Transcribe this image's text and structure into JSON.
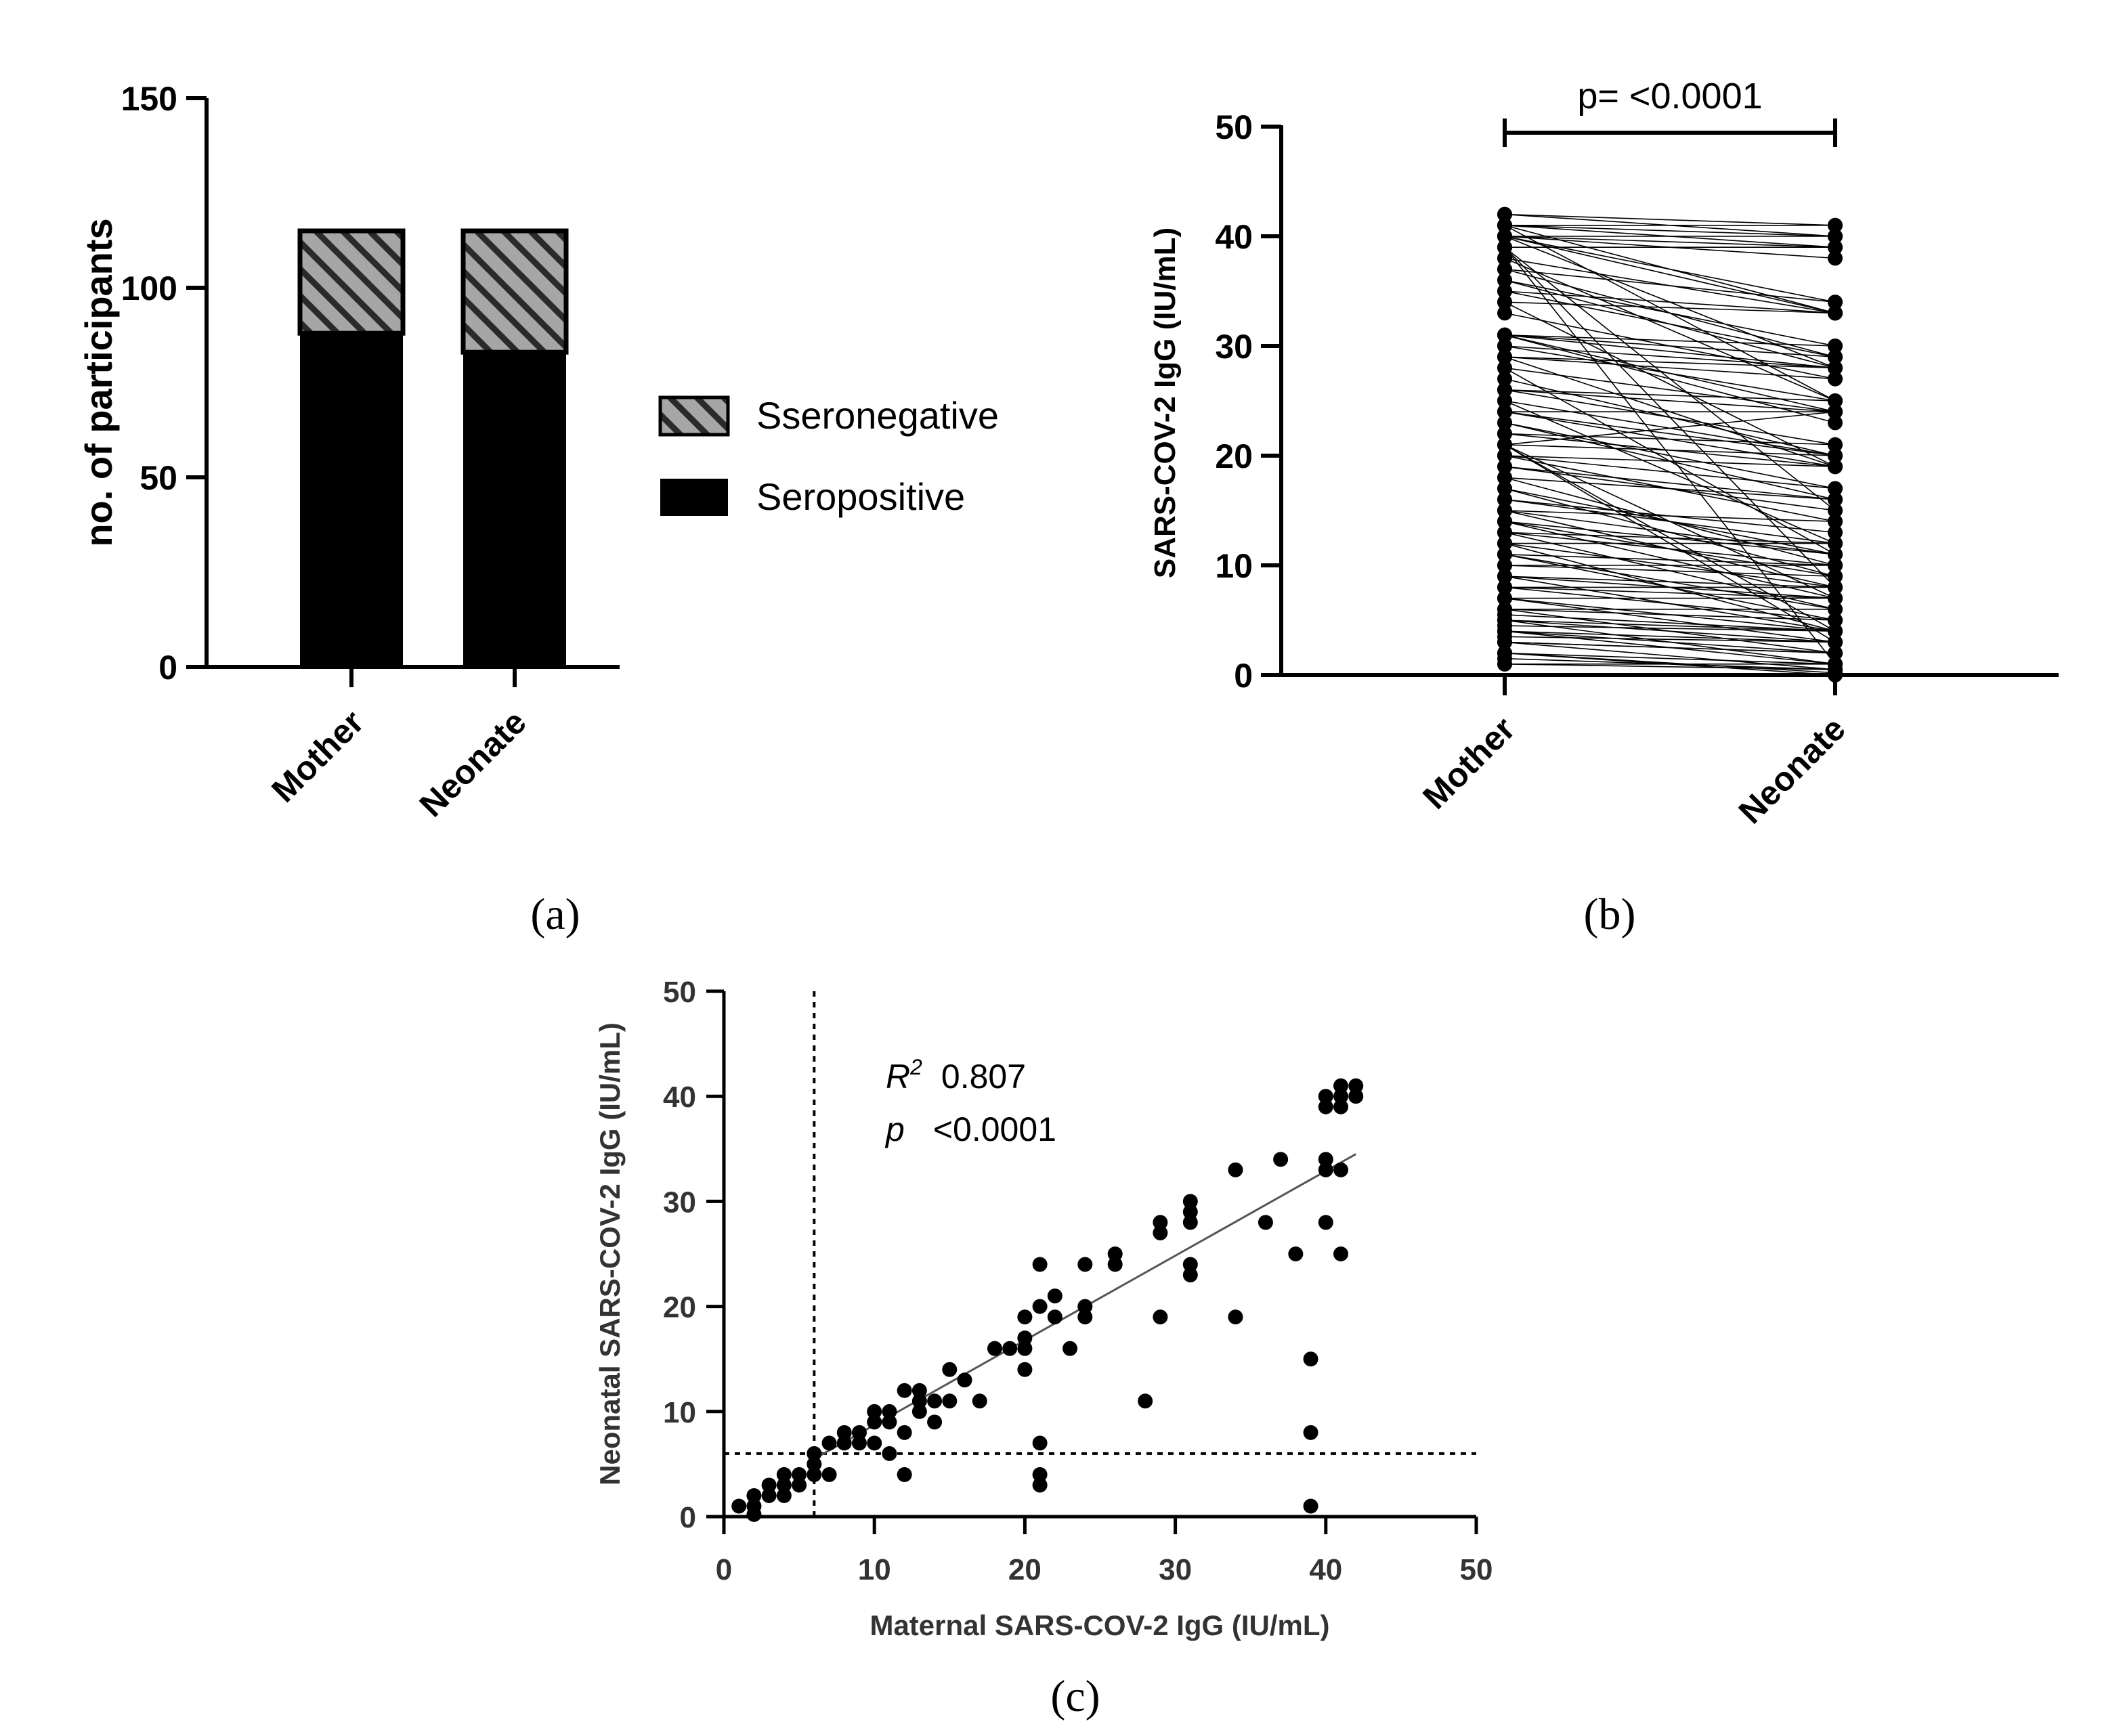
{
  "chart_data": [
    {
      "panel": "(a)",
      "type": "bar",
      "stacked": true,
      "categories": [
        "Mother",
        "Neonate"
      ],
      "series": [
        {
          "name": "Seropositive",
          "values": [
            88,
            83
          ],
          "fill": "#000000"
        },
        {
          "name": "Sseronegative",
          "values": [
            27,
            32
          ],
          "fill": "hatched grey"
        }
      ],
      "ylabel": "no. of participants",
      "ylim": [
        0,
        150
      ],
      "yticks": [
        0,
        50,
        100,
        150
      ],
      "legend_position": "right"
    },
    {
      "panel": "(b)",
      "type": "line",
      "style": "paired before-after",
      "categories": [
        "Mother",
        "Neonate"
      ],
      "ylabel": "SARS-COV-2 IgG (IU/mL)",
      "ylim": [
        0,
        50
      ],
      "yticks": [
        0,
        10,
        20,
        30,
        40,
        50
      ],
      "annotation": "p= <0.0001",
      "pairs": [
        [
          1,
          1
        ],
        [
          1,
          0.5
        ],
        [
          2,
          1
        ],
        [
          2,
          0
        ],
        [
          3,
          2
        ],
        [
          3,
          2
        ],
        [
          3.5,
          3
        ],
        [
          4,
          2
        ],
        [
          4,
          3
        ],
        [
          4.5,
          4
        ],
        [
          5,
          3
        ],
        [
          5,
          4
        ],
        [
          5.5,
          4
        ],
        [
          6,
          5
        ],
        [
          6,
          6
        ],
        [
          7,
          4
        ],
        [
          7,
          7
        ],
        [
          8,
          7
        ],
        [
          8,
          8
        ],
        [
          9,
          7
        ],
        [
          9,
          8
        ],
        [
          10,
          9
        ],
        [
          10,
          10
        ],
        [
          11,
          6
        ],
        [
          11,
          10
        ],
        [
          12,
          8
        ],
        [
          12,
          12
        ],
        [
          12,
          4
        ],
        [
          13,
          10
        ],
        [
          13,
          12
        ],
        [
          14,
          9
        ],
        [
          14,
          11
        ],
        [
          15,
          11
        ],
        [
          15,
          14
        ],
        [
          16,
          13
        ],
        [
          17,
          11
        ],
        [
          18,
          16
        ],
        [
          19,
          16
        ],
        [
          20,
          14
        ],
        [
          20,
          17
        ],
        [
          20,
          19
        ],
        [
          21,
          20
        ],
        [
          21,
          24
        ],
        [
          21,
          3
        ],
        [
          21,
          4
        ],
        [
          21,
          7
        ],
        [
          22,
          19
        ],
        [
          22,
          21
        ],
        [
          23,
          16
        ],
        [
          24,
          19
        ],
        [
          24,
          20
        ],
        [
          24,
          24
        ],
        [
          26,
          24
        ],
        [
          26,
          25
        ],
        [
          28,
          11
        ],
        [
          29,
          19
        ],
        [
          29,
          27
        ],
        [
          29,
          28
        ],
        [
          31,
          23
        ],
        [
          31,
          24
        ],
        [
          31,
          28
        ],
        [
          31,
          29
        ],
        [
          31,
          30
        ],
        [
          34,
          19
        ],
        [
          34,
          33
        ],
        [
          36,
          28
        ],
        [
          37,
          34
        ],
        [
          38,
          25
        ],
        [
          39,
          1
        ],
        [
          39,
          8
        ],
        [
          39,
          15
        ],
        [
          40,
          28
        ],
        [
          40,
          33
        ],
        [
          40,
          34
        ],
        [
          40,
          39
        ],
        [
          40,
          40
        ],
        [
          41,
          25
        ],
        [
          41,
          33
        ],
        [
          41,
          39
        ],
        [
          41,
          40
        ],
        [
          41,
          41
        ],
        [
          42,
          40
        ],
        [
          42,
          41
        ],
        [
          40,
          38
        ],
        [
          39,
          39
        ],
        [
          38,
          33
        ],
        [
          36,
          30
        ],
        [
          35,
          29
        ],
        [
          30,
          28
        ],
        [
          28,
          24
        ],
        [
          26,
          21
        ],
        [
          25,
          20
        ],
        [
          23,
          17
        ],
        [
          19,
          15
        ],
        [
          18,
          10
        ],
        [
          17,
          9
        ],
        [
          16,
          12
        ],
        [
          15,
          8
        ],
        [
          14,
          7
        ],
        [
          13,
          6
        ],
        [
          11,
          5
        ],
        [
          9,
          4
        ],
        [
          8,
          5
        ],
        [
          7,
          3
        ],
        [
          6,
          2
        ],
        [
          5,
          1
        ],
        [
          4,
          1
        ],
        [
          3,
          0.5
        ],
        [
          2,
          0.2
        ],
        [
          1.5,
          0.5
        ],
        [
          27,
          20
        ],
        [
          30,
          25
        ],
        [
          33,
          27
        ],
        [
          35,
          33
        ],
        [
          37,
          29
        ],
        [
          25,
          12
        ]
      ]
    },
    {
      "panel": "(c)",
      "type": "scatter",
      "xlabel": "Maternal SARS-COV-2 IgG (IU/mL)",
      "ylabel": "Neonatal SARS-COV-2 IgG (IU/mL)",
      "xlim": [
        0,
        50
      ],
      "ylim": [
        0,
        50
      ],
      "xticks": [
        0,
        10,
        20,
        30,
        40,
        50
      ],
      "yticks": [
        0,
        10,
        20,
        30,
        40,
        50
      ],
      "cutoff_x": 6,
      "cutoff_y": 6,
      "regression_line": {
        "x": [
          6,
          42
        ],
        "y": [
          5.5,
          34.5
        ]
      },
      "r2_label": "R",
      "r2_superscript": "2",
      "r2_value": "0.807",
      "p_label": "p",
      "p_value": "<0.0001",
      "points": [
        [
          1,
          1
        ],
        [
          2,
          0.2
        ],
        [
          2,
          1
        ],
        [
          2,
          2
        ],
        [
          3,
          2
        ],
        [
          3,
          3
        ],
        [
          4,
          2
        ],
        [
          4,
          3
        ],
        [
          4,
          4
        ],
        [
          5,
          3
        ],
        [
          5,
          4
        ],
        [
          6,
          4
        ],
        [
          6,
          5
        ],
        [
          6,
          6
        ],
        [
          7,
          4
        ],
        [
          7,
          7
        ],
        [
          8,
          7
        ],
        [
          8,
          8
        ],
        [
          9,
          7
        ],
        [
          9,
          8
        ],
        [
          10,
          7
        ],
        [
          10,
          9
        ],
        [
          10,
          10
        ],
        [
          11,
          6
        ],
        [
          11,
          9
        ],
        [
          11,
          10
        ],
        [
          12,
          4
        ],
        [
          12,
          8
        ],
        [
          12,
          12
        ],
        [
          13,
          10
        ],
        [
          13,
          11
        ],
        [
          13,
          12
        ],
        [
          14,
          9
        ],
        [
          14,
          11
        ],
        [
          15,
          11
        ],
        [
          15,
          14
        ],
        [
          16,
          13
        ],
        [
          17,
          11
        ],
        [
          18,
          16
        ],
        [
          19,
          16
        ],
        [
          20,
          14
        ],
        [
          20,
          16
        ],
        [
          20,
          17
        ],
        [
          20,
          19
        ],
        [
          21,
          3
        ],
        [
          21,
          4
        ],
        [
          21,
          7
        ],
        [
          21,
          20
        ],
        [
          21,
          24
        ],
        [
          22,
          19
        ],
        [
          22,
          21
        ],
        [
          23,
          16
        ],
        [
          24,
          19
        ],
        [
          24,
          20
        ],
        [
          24,
          24
        ],
        [
          26,
          24
        ],
        [
          26,
          25
        ],
        [
          28,
          11
        ],
        [
          29,
          19
        ],
        [
          29,
          27
        ],
        [
          29,
          28
        ],
        [
          31,
          23
        ],
        [
          31,
          24
        ],
        [
          31,
          28
        ],
        [
          31,
          29
        ],
        [
          31,
          30
        ],
        [
          34,
          19
        ],
        [
          34,
          33
        ],
        [
          36,
          28
        ],
        [
          37,
          34
        ],
        [
          38,
          25
        ],
        [
          39,
          1
        ],
        [
          39,
          8
        ],
        [
          39,
          15
        ],
        [
          40,
          28
        ],
        [
          40,
          33
        ],
        [
          40,
          34
        ],
        [
          40,
          39
        ],
        [
          40,
          40
        ],
        [
          41,
          25
        ],
        [
          41,
          33
        ],
        [
          41,
          39
        ],
        [
          41,
          40
        ],
        [
          41,
          41
        ],
        [
          42,
          40
        ],
        [
          42,
          41
        ]
      ]
    }
  ],
  "panel_a": {
    "ylabel": "no. of participants",
    "yticks": [
      "0",
      "50",
      "100",
      "150"
    ],
    "categories": [
      "Mother",
      "Neonate"
    ],
    "legend": [
      "Sseronegative",
      "Seropositive"
    ],
    "caption": "(a)"
  },
  "panel_b": {
    "ylabel": "SARS-COV-2 IgG (IU/mL)",
    "yticks": [
      "0",
      "10",
      "20",
      "30",
      "40",
      "50"
    ],
    "categories": [
      "Mother",
      "Neonate"
    ],
    "annotation": "p= <0.0001",
    "caption": "(b)"
  },
  "panel_c": {
    "xlabel": "Maternal SARS-COV-2 IgG (IU/mL)",
    "ylabel": "Neonatal SARS-COV-2 IgG (IU/mL)",
    "xticks": [
      "0",
      "10",
      "20",
      "30",
      "40",
      "50"
    ],
    "yticks": [
      "0",
      "10",
      "20",
      "30",
      "40",
      "50"
    ],
    "r2_label": "R",
    "r2_superscript": "2",
    "r2_value": "0.807",
    "p_label": "p",
    "p_value": "<0.0001",
    "caption": "(c)"
  }
}
